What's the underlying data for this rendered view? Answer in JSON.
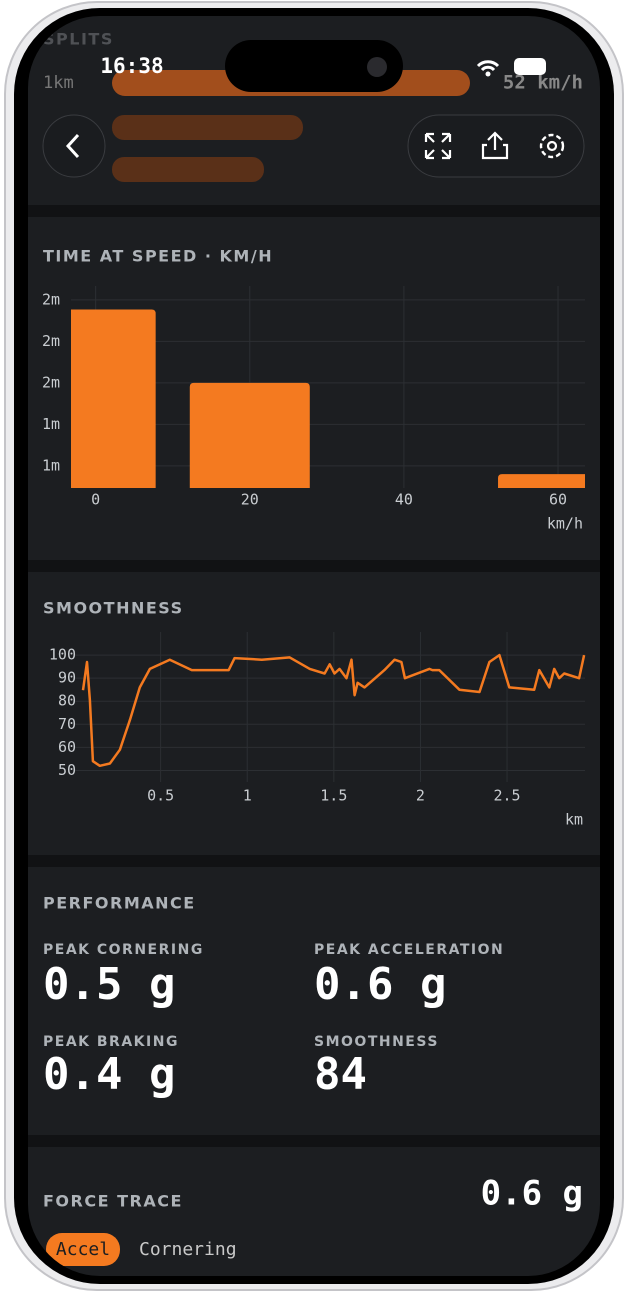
{
  "status_bar": {
    "time": "16:38"
  },
  "splits": {
    "title": "SPLITS",
    "row_label": "1km",
    "row_value": "52 km/h"
  },
  "chart_data": [
    {
      "type": "bar",
      "title": "TIME AT SPEED · KM/H",
      "x_label": "km/h",
      "color": "#f47a20",
      "grid": true,
      "x": [
        0,
        20,
        60
      ],
      "values": [
        2.03,
        1.5,
        0.84
      ],
      "xlim": [
        -3.2,
        63.5
      ],
      "xticks": [
        0,
        20,
        40,
        60
      ],
      "ylim": [
        0.74,
        2.2
      ],
      "yticks": [
        {
          "value": 0.9,
          "label": "1m"
        },
        {
          "value": 1.2,
          "label": "1m"
        },
        {
          "value": 1.5,
          "label": "2m"
        },
        {
          "value": 1.8,
          "label": "2m"
        },
        {
          "value": 2.1,
          "label": "2m"
        }
      ]
    },
    {
      "type": "line",
      "title": "SMOOTHNESS",
      "x_label": "km",
      "color": "#f47a20",
      "grid": true,
      "x": [
        0.052,
        0.075,
        0.092,
        0.109,
        0.149,
        0.207,
        0.265,
        0.323,
        0.38,
        0.438,
        0.553,
        0.68,
        0.893,
        0.927,
        1.084,
        1.245,
        1.361,
        1.447,
        1.476,
        1.504,
        1.533,
        1.573,
        1.602,
        1.62,
        1.637,
        1.677,
        1.792,
        1.85,
        1.89,
        1.91,
        2.052,
        2.069,
        2.109,
        2.225,
        2.341,
        2.398,
        2.456,
        2.513,
        2.657,
        2.686,
        2.744,
        2.772,
        2.801,
        2.83,
        2.916,
        2.945
      ],
      "values": [
        84.8,
        97,
        80.4,
        54,
        52,
        53,
        59,
        72,
        86,
        94,
        98,
        93.5,
        93.5,
        98.7,
        98,
        99,
        94,
        92,
        96,
        92,
        94,
        90,
        98,
        82.6,
        88,
        86,
        93.5,
        98,
        97,
        90,
        94,
        93.5,
        93.5,
        85,
        84,
        97,
        100,
        86,
        85,
        93.5,
        86,
        94,
        90,
        92,
        90,
        100
      ],
      "xlim": [
        0,
        2.95
      ],
      "xticks": [
        0.5,
        1,
        1.5,
        2,
        2.5
      ],
      "ylim": [
        45,
        110
      ],
      "yticks": [
        50,
        60,
        70,
        80,
        90,
        100
      ]
    }
  ],
  "performance": {
    "title": "PERFORMANCE",
    "metrics": [
      {
        "label": "PEAK CORNERING",
        "value": "0.5 g"
      },
      {
        "label": "PEAK ACCELERATION",
        "value": "0.6 g"
      },
      {
        "label": "PEAK BRAKING",
        "value": "0.4 g"
      },
      {
        "label": "SMOOTHNESS",
        "value": "84"
      }
    ]
  },
  "force_trace": {
    "title": "FORCE TRACE",
    "value": "0.6 g",
    "tabs": [
      "Accel",
      "Cornering"
    ]
  }
}
